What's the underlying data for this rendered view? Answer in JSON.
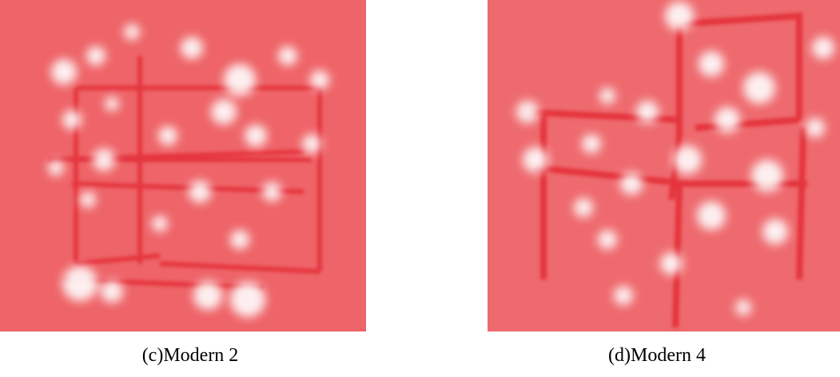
{
  "figures": [
    {
      "caption": "(c)Modern 2"
    },
    {
      "caption": "(d)Modern 4"
    }
  ]
}
